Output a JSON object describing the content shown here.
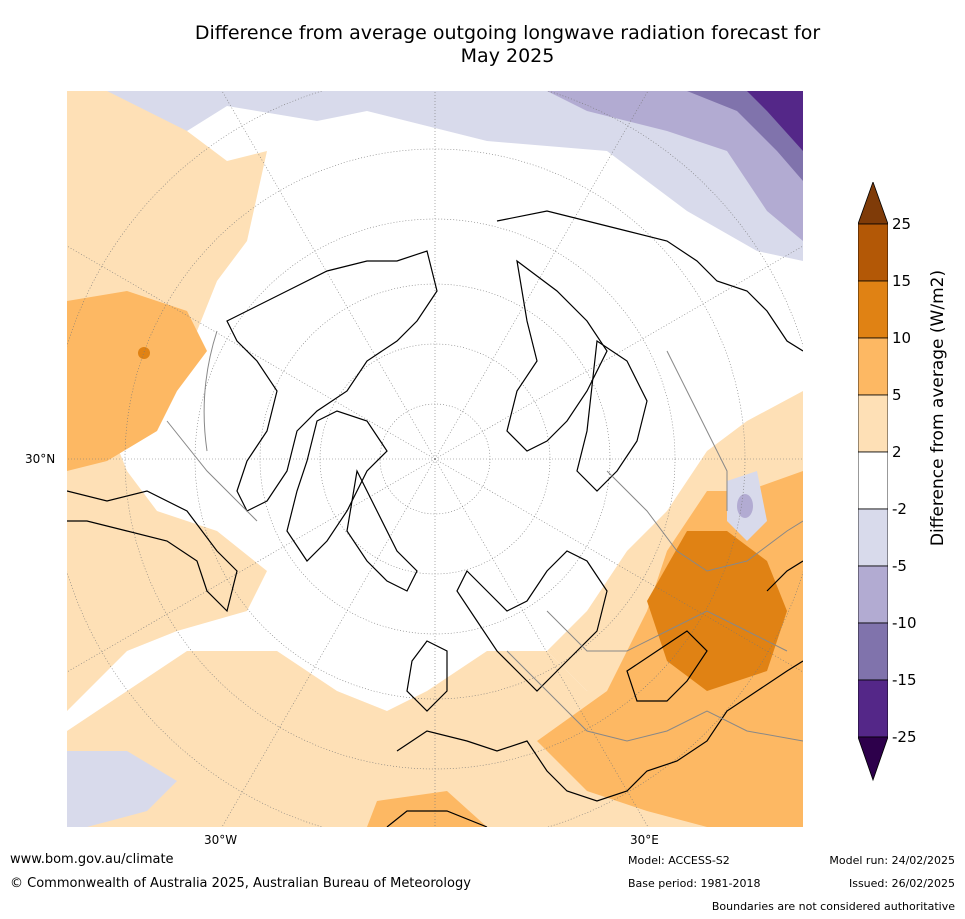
{
  "title_line1": "Difference from average outgoing longwave radiation forecast for",
  "title_line2": "May 2025",
  "map": {
    "lat_label": "30°N",
    "lon_label_west": "30°W",
    "lon_label_east": "30°E"
  },
  "colorbar": {
    "title": "Difference from average (W/m2)",
    "ticks": [
      "25",
      "15",
      "10",
      "5",
      "2",
      "-2",
      "-5",
      "-10",
      "-15",
      "-25"
    ],
    "colors": [
      "#7f3b08",
      "#b35806",
      "#e08214",
      "#fdb863",
      "#fee0b6",
      "#ffffff",
      "#d8daeb",
      "#b2abd2",
      "#8073ac",
      "#542788",
      "#2d004b"
    ]
  },
  "footer": {
    "url": "www.bom.gov.au/climate",
    "copyright": "© Commonwealth of Australia 2025, Australian Bureau of Meteorology",
    "model": "Model: ACCESS-S2",
    "base_period": "Base period: 1981-2018",
    "model_run": "Model run: 24/02/2025",
    "issued": "Issued: 26/02/2025",
    "disclaimer": "Boundaries are not considered authoritative"
  }
}
